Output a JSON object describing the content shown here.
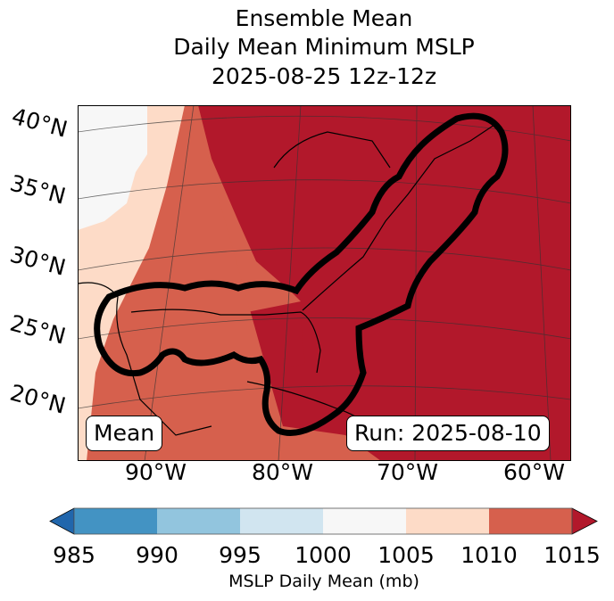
{
  "title": [
    "Ensemble Mean",
    "Daily Mean Minimum MSLP",
    "2025-08-25 12z-12z"
  ],
  "lat_labels": [
    "40°N",
    "35°N",
    "30°N",
    "25°N",
    "20°N"
  ],
  "lon_labels": [
    "90°W",
    "80°W",
    "70°W",
    "60°W"
  ],
  "annotations": {
    "left": "Mean",
    "right": "Run: 2025-08-10"
  },
  "colorbar": {
    "ticks": [
      "985",
      "990",
      "995",
      "1000",
      "1005",
      "1010",
      "1015"
    ],
    "label": "MSLP Daily Mean (mb)",
    "colors": [
      "#4393c3",
      "#92c5de",
      "#d1e5f0",
      "#f7f7f7",
      "#fddbc7",
      "#d6604d"
    ],
    "under_color": "#2166ac",
    "over_color": "#b2182b"
  }
}
